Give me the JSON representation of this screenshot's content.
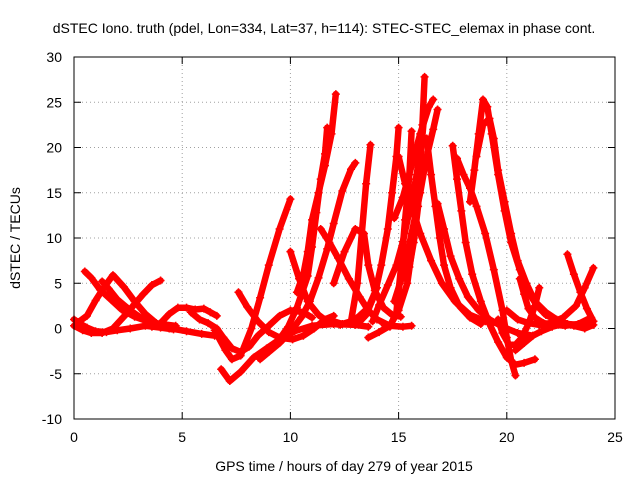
{
  "chart_data": {
    "type": "scatter",
    "title": "dSTEC Iono. truth (pdel, Lon=334, Lat=37, h=114): STEC-STEC_elemax in phase cont.",
    "xlabel": "GPS time / hours of day 279 of year 2015",
    "ylabel": "dSTEC  / TECUs",
    "xlim": [
      0,
      25
    ],
    "ylim": [
      -10,
      30
    ],
    "xticks": [
      0,
      5,
      10,
      15,
      20,
      25
    ],
    "yticks": [
      -10,
      -5,
      0,
      5,
      10,
      15,
      20,
      25,
      30
    ],
    "grid": true,
    "marker": "plus",
    "color": "#ff0000",
    "tracks": [
      [
        [
          0.0,
          1.0
        ],
        [
          0.3,
          0.5
        ],
        [
          0.6,
          0.1
        ],
        [
          1.0,
          -0.3
        ],
        [
          1.5,
          -0.4
        ],
        [
          2.0,
          -0.2
        ],
        [
          2.6,
          0.0
        ],
        [
          3.3,
          0.3
        ],
        [
          4.0,
          0.1
        ],
        [
          4.6,
          -0.1
        ]
      ],
      [
        [
          0.0,
          0.3
        ],
        [
          0.4,
          -0.2
        ],
        [
          0.8,
          -0.5
        ],
        [
          1.3,
          -0.5
        ],
        [
          1.8,
          0.0
        ],
        [
          2.3,
          1.3
        ],
        [
          2.8,
          2.7
        ],
        [
          3.2,
          3.8
        ],
        [
          3.6,
          4.8
        ],
        [
          4.0,
          5.3
        ]
      ],
      [
        [
          0.5,
          6.3
        ],
        [
          0.8,
          5.6
        ],
        [
          1.2,
          4.3
        ],
        [
          1.7,
          3.2
        ],
        [
          2.2,
          2.1
        ],
        [
          2.8,
          1.3
        ],
        [
          3.4,
          0.8
        ],
        [
          4.0,
          0.5
        ],
        [
          4.7,
          0.3
        ]
      ],
      [
        [
          0.2,
          0.7
        ],
        [
          0.6,
          1.4
        ],
        [
          1.0,
          3.1
        ],
        [
          1.4,
          4.6
        ],
        [
          1.8,
          5.9
        ],
        [
          2.3,
          4.6
        ],
        [
          2.8,
          3.0
        ],
        [
          3.3,
          1.6
        ],
        [
          3.8,
          0.6
        ],
        [
          4.4,
          0.0
        ]
      ],
      [
        [
          1.3,
          5.2
        ],
        [
          1.6,
          4.4
        ],
        [
          2.0,
          3.2
        ],
        [
          2.6,
          2.0
        ],
        [
          3.2,
          1.0
        ],
        [
          3.8,
          0.4
        ],
        [
          4.5,
          0.0
        ],
        [
          5.2,
          -0.3
        ],
        [
          5.9,
          -0.6
        ],
        [
          6.5,
          -0.8
        ]
      ],
      [
        [
          3.6,
          0.2
        ],
        [
          4.0,
          0.6
        ],
        [
          4.4,
          1.6
        ],
        [
          4.8,
          2.3
        ],
        [
          5.2,
          2.3
        ],
        [
          5.6,
          2.1
        ],
        [
          6.0,
          2.2
        ],
        [
          6.3,
          1.8
        ],
        [
          6.6,
          1.4
        ]
      ],
      [
        [
          5.4,
          1.8
        ],
        [
          5.8,
          1.0
        ],
        [
          6.2,
          0.6
        ],
        [
          6.6,
          0.0
        ],
        [
          6.9,
          -1.0
        ],
        [
          7.3,
          -2.2
        ],
        [
          7.7,
          -2.6
        ],
        [
          8.1,
          -2.0
        ],
        [
          8.5,
          -0.8
        ],
        [
          9.0,
          0.3
        ],
        [
          9.5,
          1.4
        ],
        [
          10.0,
          2.0
        ],
        [
          10.6,
          1.8
        ],
        [
          11.0,
          1.2
        ]
      ],
      [
        [
          6.5,
          -0.2
        ],
        [
          7.0,
          -2.4
        ],
        [
          7.3,
          -3.4
        ],
        [
          7.7,
          -3.0
        ],
        [
          8.2,
          0.0
        ],
        [
          8.6,
          3.4
        ],
        [
          9.0,
          7.0
        ],
        [
          9.5,
          11.0
        ],
        [
          10.0,
          14.3
        ]
      ],
      [
        [
          6.8,
          -4.5
        ],
        [
          7.2,
          -5.8
        ],
        [
          7.7,
          -4.8
        ],
        [
          8.3,
          -3.2
        ],
        [
          8.9,
          -2.2
        ],
        [
          9.5,
          -1.2
        ],
        [
          10.2,
          -0.3
        ],
        [
          11.0,
          0.3
        ],
        [
          12.0,
          0.5
        ],
        [
          13.0,
          0.4
        ],
        [
          13.6,
          0.2
        ]
      ],
      [
        [
          7.6,
          4.0
        ],
        [
          8.0,
          2.4
        ],
        [
          8.5,
          0.8
        ],
        [
          9.0,
          -0.4
        ],
        [
          9.5,
          -1.0
        ],
        [
          10.1,
          -1.2
        ],
        [
          10.6,
          -0.8
        ],
        [
          11.1,
          0.0
        ],
        [
          11.6,
          1.0
        ],
        [
          12.0,
          1.4
        ]
      ],
      [
        [
          8.6,
          -3.4
        ],
        [
          9.0,
          -2.6
        ],
        [
          9.5,
          -1.6
        ],
        [
          10.0,
          -0.4
        ],
        [
          10.5,
          1.2
        ],
        [
          10.9,
          3.0
        ],
        [
          11.3,
          5.6
        ],
        [
          11.7,
          8.8
        ],
        [
          12.0,
          11.6
        ],
        [
          12.4,
          15.2
        ],
        [
          12.8,
          17.6
        ],
        [
          13.0,
          18.3
        ]
      ],
      [
        [
          8.9,
          -2.5
        ],
        [
          9.4,
          -1.5
        ],
        [
          9.9,
          0.2
        ],
        [
          10.3,
          2.3
        ],
        [
          10.8,
          5.8
        ],
        [
          11.0,
          9.0
        ],
        [
          11.2,
          12.8
        ],
        [
          11.4,
          16.5
        ],
        [
          11.6,
          19.3
        ],
        [
          11.7,
          22.2
        ]
      ],
      [
        [
          10.3,
          4.0
        ],
        [
          10.6,
          6.0
        ],
        [
          10.8,
          8.5
        ],
        [
          11.0,
          12.0
        ],
        [
          11.3,
          15.0
        ],
        [
          11.6,
          18.0
        ],
        [
          11.9,
          21.5
        ],
        [
          12.1,
          25.9
        ]
      ],
      [
        [
          10.0,
          8.5
        ],
        [
          10.4,
          5.5
        ],
        [
          10.8,
          3.0
        ],
        [
          11.3,
          1.5
        ],
        [
          11.8,
          0.6
        ],
        [
          12.3,
          0.4
        ],
        [
          12.8,
          0.7
        ],
        [
          13.2,
          1.4
        ],
        [
          13.6,
          2.3
        ],
        [
          14.0,
          4.5
        ]
      ],
      [
        [
          11.4,
          11.0
        ],
        [
          11.8,
          9.5
        ],
        [
          12.2,
          7.8
        ],
        [
          12.7,
          5.5
        ],
        [
          13.2,
          3.5
        ],
        [
          13.6,
          2.0
        ],
        [
          14.0,
          1.0
        ],
        [
          14.6,
          0.3
        ],
        [
          15.2,
          0.2
        ],
        [
          15.6,
          0.3
        ]
      ],
      [
        [
          12.0,
          5.0
        ],
        [
          12.5,
          8.5
        ],
        [
          13.0,
          11.0
        ],
        [
          13.4,
          10.5
        ],
        [
          13.6,
          7.0
        ],
        [
          13.9,
          4.2
        ],
        [
          14.3,
          2.3
        ],
        [
          14.7,
          1.5
        ],
        [
          15.1,
          1.3
        ]
      ],
      [
        [
          12.0,
          0.8
        ],
        [
          12.4,
          0.5
        ],
        [
          12.8,
          0.8
        ],
        [
          13.1,
          5.0
        ],
        [
          13.3,
          10.5
        ],
        [
          13.5,
          16.0
        ],
        [
          13.7,
          20.3
        ]
      ],
      [
        [
          13.1,
          0.5
        ],
        [
          13.5,
          1.5
        ],
        [
          13.9,
          3.8
        ],
        [
          14.2,
          7.0
        ],
        [
          14.5,
          11.0
        ],
        [
          14.7,
          15.0
        ],
        [
          14.9,
          19.0
        ],
        [
          15.0,
          22.2
        ]
      ],
      [
        [
          13.6,
          -1.0
        ],
        [
          14.1,
          -0.4
        ],
        [
          14.6,
          0.3
        ],
        [
          15.0,
          2.0
        ],
        [
          15.4,
          5.0
        ],
        [
          15.7,
          10.0
        ],
        [
          15.9,
          15.0
        ],
        [
          16.0,
          18.5
        ],
        [
          16.1,
          21.3
        ],
        [
          16.2,
          24.0
        ]
      ],
      [
        [
          13.8,
          0.8
        ],
        [
          14.1,
          2.6
        ],
        [
          14.5,
          4.8
        ],
        [
          14.9,
          7.0
        ],
        [
          15.2,
          9.6
        ],
        [
          15.5,
          13.0
        ],
        [
          15.8,
          16.5
        ],
        [
          16.0,
          19.5
        ]
      ],
      [
        [
          14.3,
          0.5
        ],
        [
          14.6,
          0.2
        ],
        [
          14.9,
          1.8
        ],
        [
          15.1,
          6.5
        ],
        [
          15.3,
          12.0
        ],
        [
          15.5,
          17.0
        ],
        [
          15.6,
          21.8
        ]
      ],
      [
        [
          15.3,
          5.5
        ],
        [
          15.5,
          6.8
        ],
        [
          15.7,
          9.5
        ],
        [
          15.9,
          13.5
        ],
        [
          16.0,
          18.0
        ],
        [
          16.1,
          22.5
        ],
        [
          16.2,
          27.8
        ]
      ],
      [
        [
          14.8,
          12.2
        ],
        [
          15.2,
          14.5
        ],
        [
          15.6,
          18.0
        ],
        [
          16.0,
          21.5
        ],
        [
          16.4,
          24.5
        ],
        [
          16.6,
          25.3
        ]
      ],
      [
        [
          15.0,
          19.0
        ],
        [
          15.3,
          16.0
        ],
        [
          15.6,
          13.5
        ],
        [
          16.0,
          10.5
        ],
        [
          16.5,
          7.5
        ],
        [
          17.0,
          5.0
        ],
        [
          17.6,
          3.0
        ],
        [
          18.3,
          1.5
        ],
        [
          19.0,
          0.8
        ],
        [
          19.6,
          0.6
        ]
      ],
      [
        [
          14.8,
          3.0
        ],
        [
          15.2,
          6.0
        ],
        [
          15.6,
          10.5
        ],
        [
          16.0,
          15.0
        ],
        [
          16.3,
          19.0
        ],
        [
          16.6,
          22.0
        ],
        [
          16.8,
          24.2
        ]
      ],
      [
        [
          16.3,
          21.0
        ],
        [
          16.5,
          17.0
        ],
        [
          16.7,
          13.5
        ],
        [
          16.9,
          10.0
        ],
        [
          17.1,
          7.0
        ],
        [
          17.4,
          4.5
        ],
        [
          17.8,
          2.5
        ],
        [
          18.3,
          1.2
        ],
        [
          18.8,
          0.5
        ]
      ],
      [
        [
          16.8,
          13.8
        ],
        [
          17.1,
          11.0
        ],
        [
          17.4,
          8.0
        ],
        [
          17.8,
          5.5
        ],
        [
          18.2,
          3.5
        ],
        [
          18.7,
          2.0
        ],
        [
          19.2,
          1.0
        ],
        [
          19.8,
          0.2
        ],
        [
          20.5,
          -0.5
        ],
        [
          21.2,
          -0.8
        ]
      ],
      [
        [
          17.5,
          20.2
        ],
        [
          17.7,
          16.5
        ],
        [
          17.9,
          13.0
        ],
        [
          18.1,
          9.5
        ],
        [
          18.4,
          6.0
        ],
        [
          18.8,
          3.0
        ],
        [
          19.2,
          0.5
        ],
        [
          19.6,
          -1.5
        ],
        [
          20.0,
          -3.2
        ],
        [
          20.4,
          -4.0
        ],
        [
          20.8,
          -3.8
        ],
        [
          21.3,
          -3.4
        ]
      ],
      [
        [
          17.7,
          18.8
        ],
        [
          18.0,
          17.0
        ],
        [
          18.3,
          15.5
        ],
        [
          18.6,
          13.5
        ],
        [
          19.0,
          10.5
        ],
        [
          19.4,
          6.5
        ],
        [
          19.8,
          2.0
        ],
        [
          20.0,
          -1.0
        ],
        [
          20.2,
          -3.5
        ],
        [
          20.4,
          -5.2
        ]
      ],
      [
        [
          18.3,
          14.0
        ],
        [
          18.5,
          17.5
        ],
        [
          18.7,
          21.5
        ],
        [
          18.9,
          25.3
        ],
        [
          19.1,
          24.5
        ],
        [
          19.3,
          21.5
        ],
        [
          19.6,
          17.0
        ],
        [
          19.9,
          13.0
        ],
        [
          20.2,
          9.5
        ],
        [
          20.6,
          6.5
        ],
        [
          21.0,
          4.0
        ],
        [
          21.4,
          2.5
        ],
        [
          21.8,
          1.5
        ],
        [
          22.3,
          0.9
        ],
        [
          22.8,
          0.5
        ],
        [
          23.4,
          0.3
        ],
        [
          24.0,
          0.8
        ]
      ],
      [
        [
          18.6,
          19.0
        ],
        [
          18.9,
          22.5
        ],
        [
          19.2,
          23.2
        ],
        [
          19.4,
          21.0
        ],
        [
          19.6,
          17.5
        ],
        [
          19.9,
          14.0
        ],
        [
          20.2,
          10.5
        ],
        [
          20.5,
          7.5
        ],
        [
          20.9,
          5.0
        ],
        [
          21.3,
          3.0
        ],
        [
          21.8,
          1.8
        ],
        [
          22.3,
          1.0
        ],
        [
          22.8,
          0.5
        ],
        [
          23.3,
          0.4
        ],
        [
          23.8,
          0.8
        ]
      ],
      [
        [
          19.6,
          1.0
        ],
        [
          19.8,
          -0.5
        ],
        [
          20.1,
          -1.8
        ],
        [
          20.4,
          -1.8
        ],
        [
          20.7,
          -1.0
        ],
        [
          21.0,
          0.5
        ],
        [
          21.3,
          2.5
        ],
        [
          21.5,
          4.5
        ]
      ],
      [
        [
          20.6,
          5.5
        ],
        [
          20.8,
          3.8
        ],
        [
          21.0,
          2.2
        ],
        [
          21.3,
          1.2
        ],
        [
          21.7,
          0.6
        ],
        [
          22.2,
          0.4
        ],
        [
          22.7,
          0.3
        ],
        [
          23.3,
          0.5
        ],
        [
          23.9,
          1.2
        ]
      ],
      [
        [
          20.4,
          -2.4
        ],
        [
          20.8,
          -1.6
        ],
        [
          21.2,
          -0.8
        ],
        [
          21.6,
          -0.3
        ],
        [
          22.1,
          0.2
        ],
        [
          22.6,
          0.5
        ],
        [
          23.1,
          0.3
        ],
        [
          23.6,
          0.0
        ],
        [
          24.0,
          0.4
        ]
      ],
      [
        [
          20.0,
          2.0
        ],
        [
          20.5,
          1.0
        ],
        [
          21.0,
          0.6
        ],
        [
          21.5,
          0.4
        ],
        [
          22.0,
          0.6
        ],
        [
          22.6,
          1.2
        ],
        [
          23.2,
          2.5
        ],
        [
          23.6,
          4.5
        ],
        [
          24.0,
          6.7
        ]
      ],
      [
        [
          22.8,
          8.2
        ],
        [
          23.1,
          6.0
        ],
        [
          23.4,
          4.0
        ],
        [
          23.7,
          2.2
        ],
        [
          24.0,
          0.8
        ]
      ]
    ]
  }
}
